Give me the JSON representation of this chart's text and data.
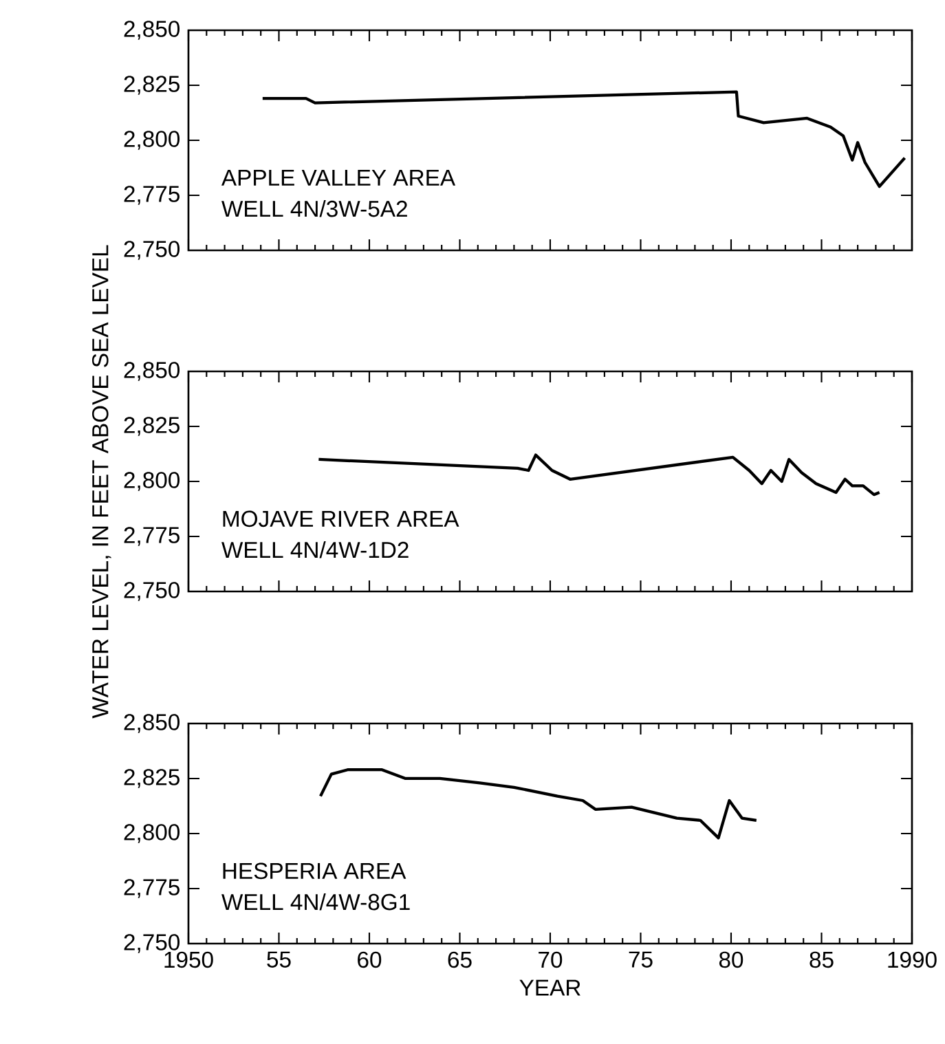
{
  "chart_data": [
    {
      "type": "line",
      "x": [
        1954.1,
        1956.5,
        1957.0,
        1980.3,
        1980.4,
        1981.8,
        1984.2,
        1985.5,
        1986.2,
        1986.7,
        1987.0,
        1987.4,
        1988.2,
        1989.6
      ],
      "series": [
        {
          "color": "#000000",
          "values": [
            2819,
            2819,
            2817,
            2822,
            2811,
            2808,
            2810,
            2806,
            2802,
            2791,
            2799,
            2790,
            2779,
            2792
          ]
        }
      ],
      "annotations": [
        "APPLE VALLEY AREA",
        "WELL 4N/3W-5A2"
      ],
      "xlim": [
        1950,
        1990
      ],
      "ylim": [
        2750,
        2850
      ],
      "xticks": [
        {
          "value": 1950,
          "label": null
        },
        {
          "value": 1955,
          "label": null
        },
        {
          "value": 1960,
          "label": null
        },
        {
          "value": 1965,
          "label": null
        },
        {
          "value": 1970,
          "label": null
        },
        {
          "value": 1975,
          "label": null
        },
        {
          "value": 1980,
          "label": null
        },
        {
          "value": 1985,
          "label": null
        },
        {
          "value": 1990,
          "label": null
        }
      ],
      "yticks": [
        {
          "value": 2750,
          "label": "2,750"
        },
        {
          "value": 2775,
          "label": "2,775"
        },
        {
          "value": 2800,
          "label": "2,800"
        },
        {
          "value": 2825,
          "label": "2,825"
        },
        {
          "value": 2850,
          "label": "2,850"
        }
      ],
      "tick_labels": "y",
      "marker": "none",
      "line_style": "solid"
    },
    {
      "type": "line",
      "x": [
        1957.2,
        1968.2,
        1968.8,
        1969.2,
        1970.1,
        1971.1,
        1980.1,
        1981.0,
        1981.7,
        1982.2,
        1982.8,
        1983.2,
        1983.9,
        1984.7,
        1985.8,
        1986.3,
        1986.7,
        1987.3,
        1987.9,
        1988.2
      ],
      "series": [
        {
          "color": "#000000",
          "values": [
            2810,
            2806,
            2805,
            2812,
            2805,
            2801,
            2811,
            2805,
            2799,
            2805,
            2800,
            2810,
            2804,
            2799,
            2795,
            2801,
            2798,
            2798,
            2794,
            2795
          ]
        }
      ],
      "ylabel": "WATER LEVEL, IN FEET ABOVE SEA LEVEL",
      "annotations": [
        "MOJAVE RIVER AREA",
        "WELL 4N/4W-1D2"
      ],
      "xlim": [
        1950,
        1990
      ],
      "ylim": [
        2750,
        2850
      ],
      "xticks": [
        {
          "value": 1950,
          "label": null
        },
        {
          "value": 1955,
          "label": null
        },
        {
          "value": 1960,
          "label": null
        },
        {
          "value": 1965,
          "label": null
        },
        {
          "value": 1970,
          "label": null
        },
        {
          "value": 1975,
          "label": null
        },
        {
          "value": 1980,
          "label": null
        },
        {
          "value": 1985,
          "label": null
        },
        {
          "value": 1990,
          "label": null
        }
      ],
      "yticks": [
        {
          "value": 2750,
          "label": "2,750"
        },
        {
          "value": 2775,
          "label": "2,775"
        },
        {
          "value": 2800,
          "label": "2,800"
        },
        {
          "value": 2825,
          "label": "2,825"
        },
        {
          "value": 2850,
          "label": "2,850"
        }
      ],
      "tick_labels": "y",
      "marker": "none",
      "line_style": "solid"
    },
    {
      "type": "line",
      "x": [
        1957.3,
        1957.9,
        1958.8,
        1960.7,
        1962.0,
        1963.9,
        1966.1,
        1968.0,
        1970.4,
        1971.8,
        1972.5,
        1974.5,
        1977.0,
        1978.3,
        1979.3,
        1979.9,
        1980.6,
        1981.4
      ],
      "series": [
        {
          "color": "#000000",
          "values": [
            2817,
            2827,
            2829,
            2829,
            2825,
            2825,
            2823,
            2821,
            2817,
            2815,
            2811,
            2812,
            2807,
            2806,
            2798,
            2815,
            2807,
            2806
          ]
        }
      ],
      "xlabel": "YEAR",
      "annotations": [
        "HESPERIA AREA",
        "WELL 4N/4W-8G1"
      ],
      "xlim": [
        1950,
        1990
      ],
      "ylim": [
        2750,
        2850
      ],
      "xticks": [
        {
          "value": 1950,
          "label": "1950"
        },
        {
          "value": 1955,
          "label": "55"
        },
        {
          "value": 1960,
          "label": "60"
        },
        {
          "value": 1965,
          "label": "65"
        },
        {
          "value": 1970,
          "label": "70"
        },
        {
          "value": 1975,
          "label": "75"
        },
        {
          "value": 1980,
          "label": "80"
        },
        {
          "value": 1985,
          "label": "85"
        },
        {
          "value": 1990,
          "label": "1990"
        }
      ],
      "yticks": [
        {
          "value": 2750,
          "label": "2,750"
        },
        {
          "value": 2775,
          "label": "2,775"
        },
        {
          "value": 2800,
          "label": "2,800"
        },
        {
          "value": 2825,
          "label": "2,825"
        },
        {
          "value": 2850,
          "label": "2,850"
        }
      ],
      "marker": "none",
      "line_style": "solid"
    }
  ]
}
